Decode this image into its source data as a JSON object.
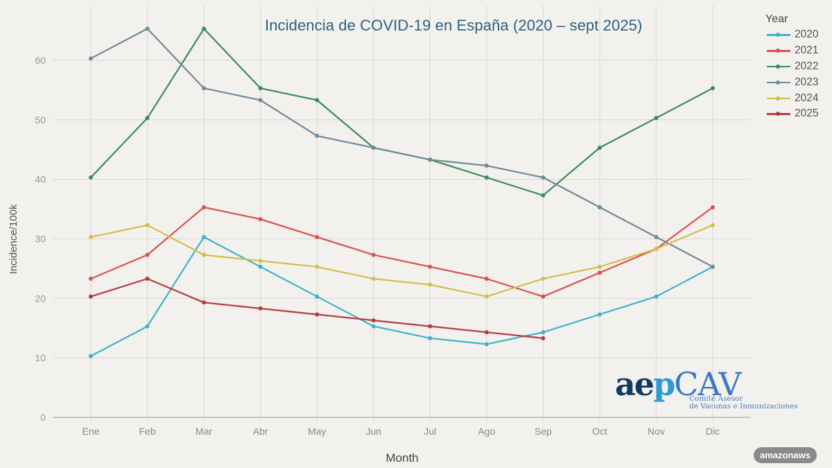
{
  "chart_data": {
    "type": "line",
    "title": "Incidencia de COVID-19 en España (2020 – sept 2025)",
    "xlabel": "Month",
    "ylabel": "Incidence/100k",
    "categories": [
      "Ene",
      "Feb",
      "Mar",
      "Abr",
      "May",
      "Jun",
      "Jul",
      "Ago",
      "Sep",
      "Oct",
      "Nov",
      "Dic"
    ],
    "yticks": [
      0,
      10,
      20,
      30,
      40,
      50,
      60
    ],
    "ylim": [
      0,
      66
    ],
    "grid": true,
    "legend_title": "Year",
    "legend_position": "top-right",
    "series": [
      {
        "name": "2020",
        "color": "#3bb4c8",
        "values": [
          10.3,
          15.3,
          30.3,
          25.3,
          20.3,
          15.3,
          13.3,
          12.3,
          14.3,
          17.3,
          20.3,
          25.3
        ]
      },
      {
        "name": "2021",
        "color": "#d9504f",
        "values": [
          23.3,
          27.3,
          35.3,
          33.3,
          30.3,
          27.3,
          25.3,
          23.3,
          20.3,
          24.3,
          28.3,
          35.3
        ]
      },
      {
        "name": "2022",
        "color": "#3a8a5c",
        "values": [
          40.3,
          50.3,
          65.3,
          55.3,
          53.3,
          45.3,
          43.3,
          40.3,
          37.3,
          45.3,
          50.3,
          55.3
        ]
      },
      {
        "name": "2023",
        "color": "#6e8a96",
        "values": [
          60.3,
          65.3,
          55.3,
          53.3,
          47.3,
          45.3,
          43.3,
          42.3,
          40.3,
          35.3,
          30.3,
          25.3
        ]
      },
      {
        "name": "2024",
        "color": "#d4bd4a",
        "values": [
          30.3,
          32.3,
          27.3,
          26.3,
          25.3,
          23.3,
          22.3,
          20.3,
          23.3,
          25.3,
          28.3,
          32.3
        ]
      },
      {
        "name": "2025",
        "color": "#b53a3e",
        "values": [
          20.3,
          23.3,
          19.3,
          18.3,
          17.3,
          16.3,
          15.3,
          14.3,
          13.3
        ]
      }
    ]
  },
  "logo": {
    "ae": "ae",
    "p": "p",
    "cav": "CAV",
    "line1": "Comité Asesor",
    "line2": "de Vacunas e Inmunizaciones"
  },
  "badge": "amazonaws"
}
